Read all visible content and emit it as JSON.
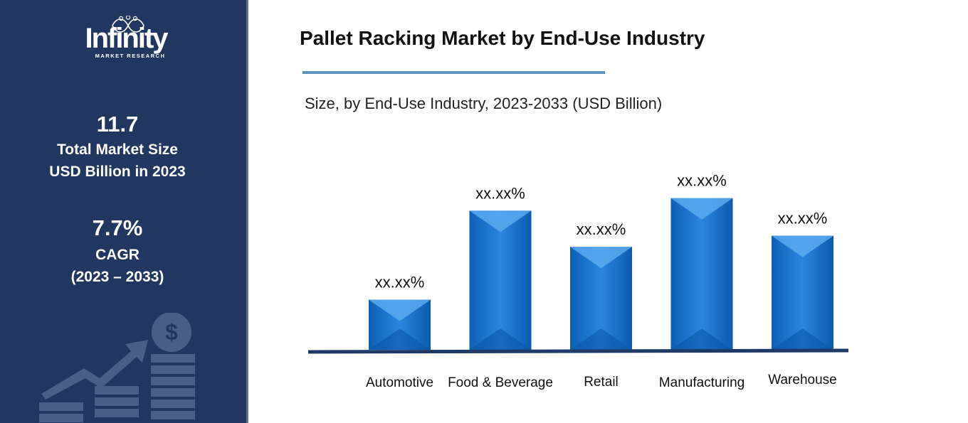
{
  "sidebar": {
    "logo_text": "Infinity",
    "logo_sub": "MARKET RESEARCH",
    "market_size_value": "11.7",
    "market_size_label_1": "Total Market Size",
    "market_size_label_2": "USD Billion in 2023",
    "cagr_value": "7.7%",
    "cagr_label": "CAGR",
    "cagr_period": "(2023 – 2033)",
    "decor_icon": "growth-chart-dollar-icon",
    "background_color": "#22375f"
  },
  "chart_data": {
    "type": "bar",
    "title": "Pallet Racking Market by End-Use Industry",
    "subtitle": "Size, by End-Use Industry, 2023-2033 (USD Billion)",
    "categories": [
      "Automotive",
      "Food & Beverage",
      "Retail",
      "Manufacturing",
      "Warehouse"
    ],
    "values": [
      36,
      100,
      74,
      109,
      82
    ],
    "data_labels": [
      "xx.xx%",
      "xx.xx%",
      "xx.xx%",
      "xx.xx%",
      "xx.xx%"
    ],
    "ylim": [
      0,
      115
    ],
    "xlabel": "",
    "ylabel": "",
    "grid": false,
    "legend": false,
    "bar_color": "#1f78d1",
    "bar_color_dark": "#0a57a8",
    "bar_color_light": "#5aaaf0",
    "axis_color": "#1f3a66"
  }
}
